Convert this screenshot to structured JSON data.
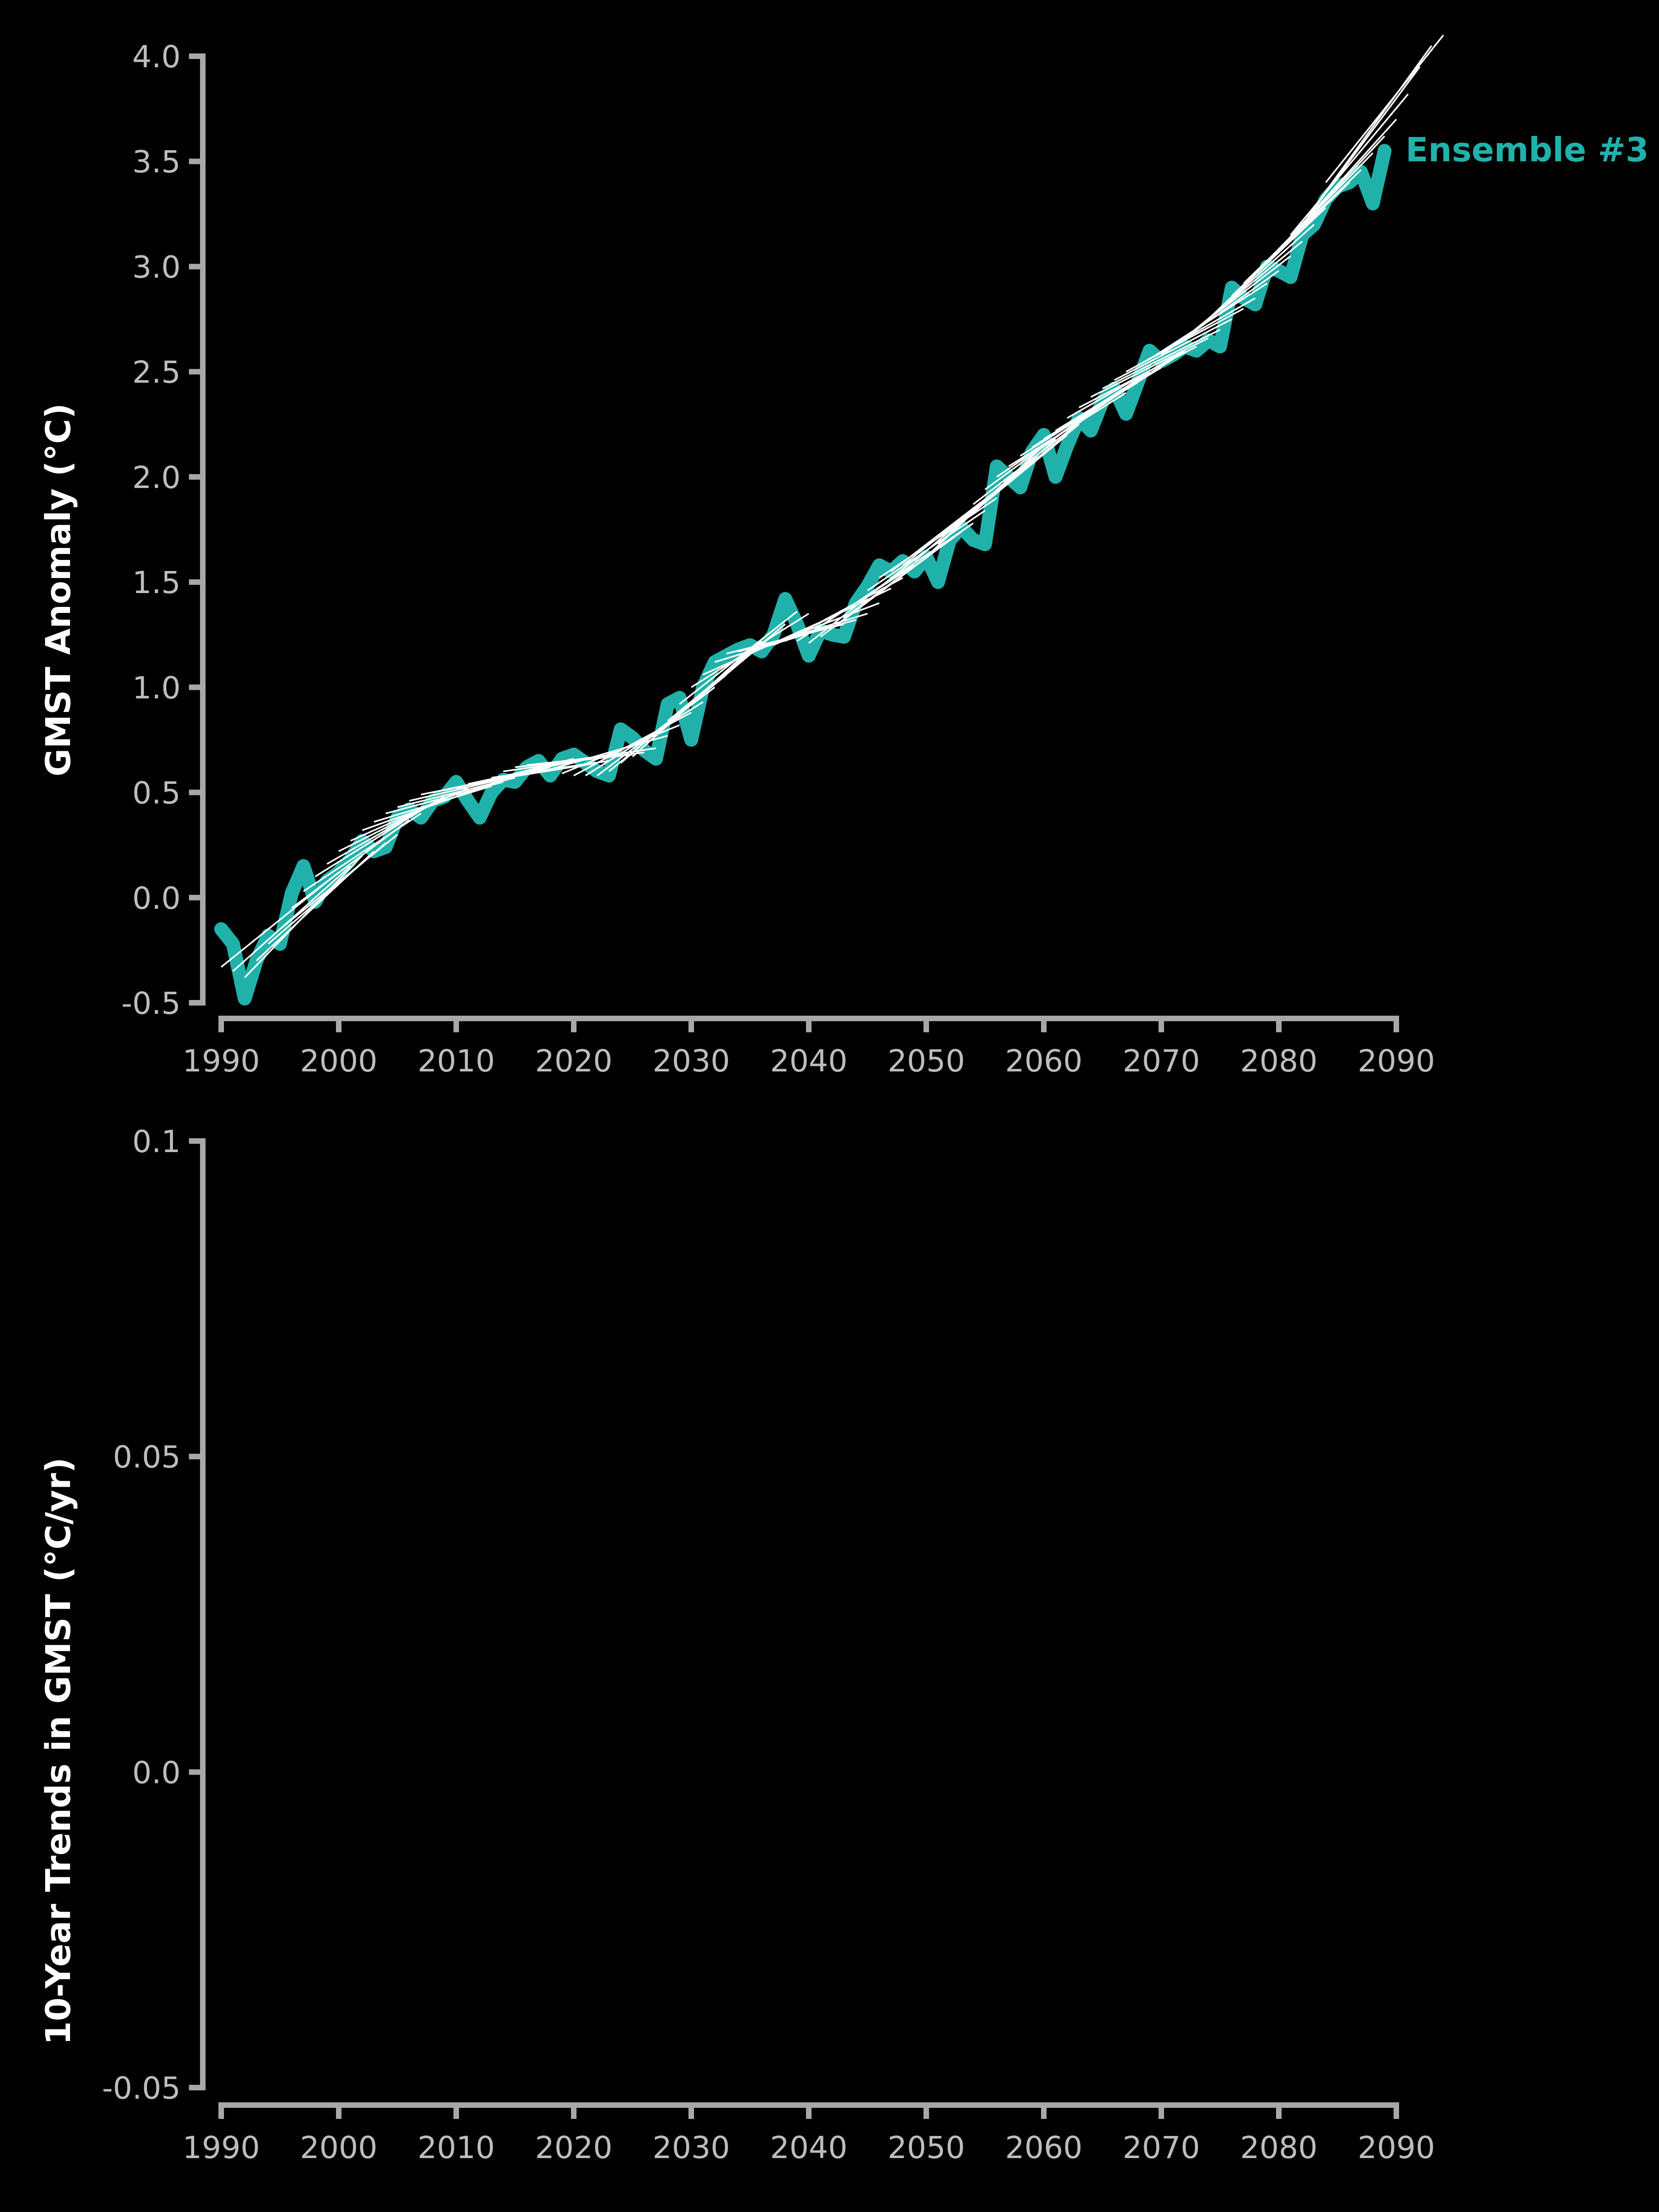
{
  "colors": {
    "background": "#000000",
    "series": "#20b2aa",
    "trend": "#ffffff",
    "axis": "#a8a8a8",
    "tick_text": "#bdbdbd",
    "label_text": "#ffffff"
  },
  "chart_data": [
    {
      "type": "line",
      "ylabel": "GMST Anomaly (°C)",
      "xlim": [
        1990,
        2090
      ],
      "ylim": [
        -0.5,
        4.0
      ],
      "x_ticks": [
        "1990",
        "2000",
        "2010",
        "2020",
        "2030",
        "2040",
        "2050",
        "2060",
        "2070",
        "2080",
        "2090"
      ],
      "y_ticks": [
        "-0.5",
        "0.0",
        "0.5",
        "1.0",
        "1.5",
        "2.0",
        "2.5",
        "3.0",
        "3.5",
        "4.0"
      ],
      "grid": false,
      "series": [
        {
          "name": "Ensemble #3",
          "x": [
            1990,
            1991,
            1992,
            1993,
            1994,
            1995,
            1996,
            1997,
            1998,
            1999,
            2000,
            2001,
            2002,
            2003,
            2004,
            2005,
            2006,
            2007,
            2008,
            2009,
            2010,
            2011,
            2012,
            2013,
            2014,
            2015,
            2016,
            2017,
            2018,
            2019,
            2020,
            2021,
            2022,
            2023,
            2024,
            2025,
            2026,
            2027,
            2028,
            2029,
            2030,
            2031,
            2032,
            2033,
            2034,
            2035,
            2036,
            2037,
            2038,
            2039,
            2040,
            2041,
            2042,
            2043,
            2044,
            2045,
            2046,
            2047,
            2048,
            2049,
            2050,
            2051,
            2052,
            2053,
            2054,
            2055,
            2056,
            2057,
            2058,
            2059,
            2060,
            2061,
            2062,
            2063,
            2064,
            2065,
            2066,
            2067,
            2068,
            2069,
            2070,
            2071,
            2072,
            2073,
            2074,
            2075,
            2076,
            2077,
            2078,
            2079,
            2080,
            2081,
            2082,
            2083,
            2084,
            2085,
            2086,
            2087,
            2088,
            2089
          ],
          "values": [
            -0.15,
            -0.22,
            -0.48,
            -0.3,
            -0.18,
            -0.22,
            0.02,
            0.15,
            -0.02,
            0.08,
            0.12,
            0.18,
            0.27,
            0.22,
            0.24,
            0.38,
            0.42,
            0.38,
            0.46,
            0.48,
            0.55,
            0.46,
            0.38,
            0.5,
            0.56,
            0.55,
            0.62,
            0.65,
            0.58,
            0.66,
            0.68,
            0.64,
            0.6,
            0.58,
            0.8,
            0.76,
            0.7,
            0.66,
            0.92,
            0.95,
            0.75,
            1.0,
            1.12,
            1.15,
            1.18,
            1.2,
            1.17,
            1.25,
            1.42,
            1.3,
            1.15,
            1.27,
            1.25,
            1.24,
            1.4,
            1.48,
            1.58,
            1.55,
            1.6,
            1.55,
            1.62,
            1.5,
            1.7,
            1.76,
            1.7,
            1.68,
            2.05,
            2.0,
            1.95,
            2.12,
            2.2,
            2.0,
            2.15,
            2.28,
            2.22,
            2.36,
            2.42,
            2.3,
            2.45,
            2.6,
            2.55,
            2.58,
            2.62,
            2.6,
            2.65,
            2.62,
            2.9,
            2.85,
            2.82,
            3.0,
            2.98,
            2.95,
            3.15,
            3.2,
            3.32,
            3.38,
            3.4,
            3.45,
            3.3,
            3.55
          ]
        }
      ],
      "trends": [
        [
          1990,
          -0.33,
          2000,
          0.12
        ],
        [
          1991,
          -0.35,
          2001,
          0.15
        ],
        [
          1992,
          -0.38,
          2002,
          0.2
        ],
        [
          1993,
          -0.3,
          2003,
          0.22
        ],
        [
          1994,
          -0.22,
          2004,
          0.26
        ],
        [
          1995,
          -0.15,
          2005,
          0.3
        ],
        [
          1996,
          -0.05,
          2006,
          0.37
        ],
        [
          1997,
          0.03,
          2007,
          0.4
        ],
        [
          1998,
          0.1,
          2008,
          0.45
        ],
        [
          1999,
          0.16,
          2009,
          0.48
        ],
        [
          2000,
          0.22,
          2010,
          0.5
        ],
        [
          2001,
          0.27,
          2011,
          0.52
        ],
        [
          2002,
          0.32,
          2012,
          0.52
        ],
        [
          2003,
          0.36,
          2013,
          0.53
        ],
        [
          2004,
          0.4,
          2014,
          0.55
        ],
        [
          2005,
          0.43,
          2015,
          0.57
        ],
        [
          2006,
          0.46,
          2016,
          0.59
        ],
        [
          2007,
          0.49,
          2017,
          0.6
        ],
        [
          2008,
          0.5,
          2018,
          0.62
        ],
        [
          2009,
          0.51,
          2019,
          0.64
        ],
        [
          2010,
          0.52,
          2020,
          0.66
        ],
        [
          2011,
          0.54,
          2021,
          0.66
        ],
        [
          2012,
          0.55,
          2022,
          0.64
        ],
        [
          2013,
          0.57,
          2023,
          0.65
        ],
        [
          2014,
          0.6,
          2024,
          0.68
        ],
        [
          2015,
          0.62,
          2025,
          0.68
        ],
        [
          2016,
          0.63,
          2026,
          0.69
        ],
        [
          2017,
          0.63,
          2027,
          0.71
        ],
        [
          2018,
          0.61,
          2028,
          0.77
        ],
        [
          2019,
          0.59,
          2029,
          0.82
        ],
        [
          2020,
          0.58,
          2030,
          0.88
        ],
        [
          2021,
          0.58,
          2031,
          0.93
        ],
        [
          2022,
          0.58,
          2032,
          1.0
        ],
        [
          2023,
          0.6,
          2033,
          1.06
        ],
        [
          2024,
          0.64,
          2034,
          1.12
        ],
        [
          2025,
          0.67,
          2035,
          1.18
        ],
        [
          2026,
          0.72,
          2036,
          1.22
        ],
        [
          2027,
          0.78,
          2037,
          1.25
        ],
        [
          2028,
          0.84,
          2038,
          1.3
        ],
        [
          2029,
          0.92,
          2039,
          1.36
        ],
        [
          2030,
          1.0,
          2040,
          1.35
        ],
        [
          2031,
          1.06,
          2041,
          1.31
        ],
        [
          2032,
          1.12,
          2042,
          1.29
        ],
        [
          2033,
          1.16,
          2043,
          1.3
        ],
        [
          2034,
          1.17,
          2044,
          1.32
        ],
        [
          2035,
          1.18,
          2045,
          1.35
        ],
        [
          2036,
          1.19,
          2046,
          1.4
        ],
        [
          2037,
          1.2,
          2047,
          1.47
        ],
        [
          2038,
          1.22,
          2048,
          1.52
        ],
        [
          2039,
          1.22,
          2049,
          1.58
        ],
        [
          2040,
          1.21,
          2050,
          1.65
        ],
        [
          2041,
          1.24,
          2051,
          1.66
        ],
        [
          2042,
          1.28,
          2052,
          1.7
        ],
        [
          2043,
          1.33,
          2053,
          1.74
        ],
        [
          2044,
          1.4,
          2054,
          1.78
        ],
        [
          2045,
          1.46,
          2055,
          1.84
        ],
        [
          2046,
          1.52,
          2056,
          1.9
        ],
        [
          2047,
          1.55,
          2057,
          1.98
        ],
        [
          2048,
          1.58,
          2058,
          2.02
        ],
        [
          2049,
          1.6,
          2059,
          2.08
        ],
        [
          2050,
          1.62,
          2060,
          2.15
        ],
        [
          2051,
          1.68,
          2061,
          2.18
        ],
        [
          2052,
          1.74,
          2062,
          2.2
        ],
        [
          2053,
          1.8,
          2063,
          2.25
        ],
        [
          2054,
          1.87,
          2064,
          2.3
        ],
        [
          2055,
          1.94,
          2065,
          2.35
        ],
        [
          2056,
          2.0,
          2066,
          2.38
        ],
        [
          2057,
          2.05,
          2067,
          2.4
        ],
        [
          2058,
          2.1,
          2068,
          2.45
        ],
        [
          2059,
          2.14,
          2069,
          2.5
        ],
        [
          2060,
          2.18,
          2070,
          2.52
        ],
        [
          2061,
          2.22,
          2071,
          2.56
        ],
        [
          2062,
          2.28,
          2072,
          2.6
        ],
        [
          2063,
          2.33,
          2073,
          2.62
        ],
        [
          2064,
          2.38,
          2074,
          2.66
        ],
        [
          2065,
          2.42,
          2075,
          2.7
        ],
        [
          2066,
          2.46,
          2076,
          2.75
        ],
        [
          2067,
          2.5,
          2077,
          2.8
        ],
        [
          2068,
          2.53,
          2078,
          2.85
        ],
        [
          2069,
          2.56,
          2079,
          2.92
        ],
        [
          2070,
          2.58,
          2080,
          2.98
        ],
        [
          2071,
          2.62,
          2081,
          3.05
        ],
        [
          2072,
          2.66,
          2082,
          3.12
        ],
        [
          2073,
          2.7,
          2083,
          3.2
        ],
        [
          2074,
          2.75,
          2084,
          3.28
        ],
        [
          2075,
          2.8,
          2085,
          3.35
        ],
        [
          2076,
          2.86,
          2086,
          3.4
        ],
        [
          2077,
          2.92,
          2087,
          3.46
        ],
        [
          2078,
          2.97,
          2088,
          3.54
        ],
        [
          2079,
          3.02,
          2089,
          3.62
        ],
        [
          2080,
          3.08,
          2090,
          3.7
        ],
        [
          2081,
          3.15,
          2091,
          3.82
        ],
        [
          2082,
          3.2,
          2092,
          3.95
        ],
        [
          2083,
          3.28,
          2093,
          4.05
        ],
        [
          2084,
          3.4,
          2094,
          4.1
        ]
      ]
    },
    {
      "type": "line",
      "ylabel": "10-Year Trends in GMST (°C/yr)",
      "xlim": [
        1990,
        2090
      ],
      "ylim": [
        -0.05,
        0.1
      ],
      "x_ticks": [
        "1990",
        "2000",
        "2010",
        "2020",
        "2030",
        "2040",
        "2050",
        "2060",
        "2070",
        "2080",
        "2090"
      ],
      "y_ticks": [
        "-0.05",
        "0.0",
        "0.05",
        "0.1"
      ],
      "grid": false,
      "series": []
    }
  ]
}
